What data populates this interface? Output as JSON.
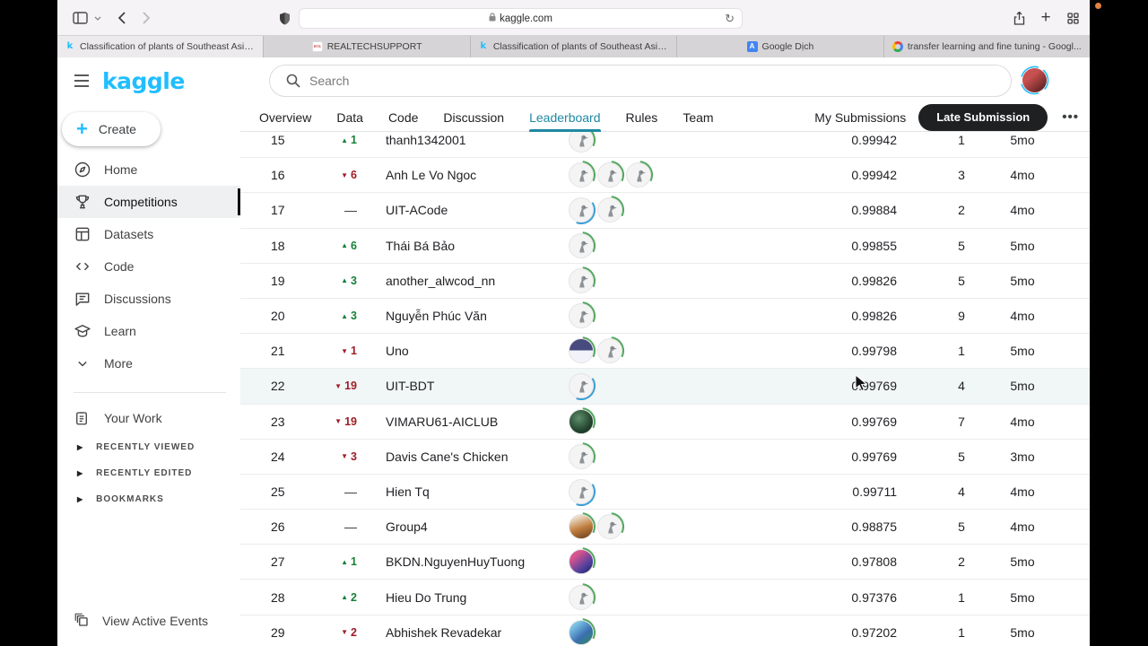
{
  "browser": {
    "url": "kaggle.com",
    "toolbar_icons": [
      "sidebar-toggle-icon",
      "chevron-down-icon",
      "back-icon",
      "forward-icon",
      "privacy-shield-icon",
      "lock-icon",
      "reload-icon",
      "share-icon",
      "new-tab-icon",
      "tab-overview-icon"
    ],
    "tabs": [
      {
        "label": "Classification of plants of Southeast Asia...",
        "icon": "kaggle-favicon",
        "active": true
      },
      {
        "label": "REALTECHSUPPORT",
        "icon": "rts-favicon",
        "active": false
      },
      {
        "label": "Classification of plants of Southeast Asia...",
        "icon": "kaggle-favicon",
        "active": false
      },
      {
        "label": "Google Dịch",
        "icon": "google-translate-favicon",
        "active": false
      },
      {
        "label": "transfer learning and fine tuning - Googl...",
        "icon": "google-favicon",
        "active": false
      }
    ]
  },
  "sidebar": {
    "logo": "kaggle",
    "create_label": "Create",
    "items": [
      {
        "label": "Home",
        "icon": "compass-icon",
        "active": false
      },
      {
        "label": "Competitions",
        "icon": "trophy-icon",
        "active": true
      },
      {
        "label": "Datasets",
        "icon": "datasets-icon",
        "active": false
      },
      {
        "label": "Code",
        "icon": "code-icon",
        "active": false
      },
      {
        "label": "Discussions",
        "icon": "discussions-icon",
        "active": false
      },
      {
        "label": "Learn",
        "icon": "learn-icon",
        "active": false
      },
      {
        "label": "More",
        "icon": "chevron-down-icon",
        "active": false
      }
    ],
    "your_work": "Your Work",
    "collapsed_sections": [
      "RECENTLY VIEWED",
      "RECENTLY EDITED",
      "BOOKMARKS"
    ],
    "footer": "View Active Events"
  },
  "header": {
    "search_placeholder": "Search"
  },
  "nav": {
    "tabs": [
      "Overview",
      "Data",
      "Code",
      "Discussion",
      "Leaderboard",
      "Rules",
      "Team"
    ],
    "active_tab": "Leaderboard",
    "my_submissions": "My Submissions",
    "late_submission": "Late Submission",
    "more": "•••"
  },
  "colors": {
    "kaggle_accent": "#20beff",
    "nav_active_teal": "#1e89a3",
    "delta_up_green": "#188038",
    "delta_down_red": "#a01c26",
    "row_highlight": "#f1f6f6",
    "arc_green": "#55a860",
    "arc_blue": "#3a9fd8"
  },
  "leaderboard": {
    "rows": [
      {
        "rank": "15",
        "dir": "up",
        "delta": "1",
        "team": "thanh1342001",
        "avatars": [
          "goose:green"
        ],
        "score": "0.99942",
        "entries": "1",
        "last": "5mo",
        "highlight": false
      },
      {
        "rank": "16",
        "dir": "down",
        "delta": "6",
        "team": "Anh Le Vo Ngoc",
        "avatars": [
          "goose:green",
          "goose:green",
          "goose:green"
        ],
        "score": "0.99942",
        "entries": "3",
        "last": "4mo",
        "highlight": false
      },
      {
        "rank": "17",
        "dir": "flat",
        "delta": "—",
        "team": "UIT-ACode",
        "avatars": [
          "goose:blue",
          "goose:green"
        ],
        "score": "0.99884",
        "entries": "2",
        "last": "4mo",
        "highlight": false
      },
      {
        "rank": "18",
        "dir": "up",
        "delta": "6",
        "team": "Thái Bá Bảo",
        "avatars": [
          "goose:green"
        ],
        "score": "0.99855",
        "entries": "5",
        "last": "5mo",
        "highlight": false
      },
      {
        "rank": "19",
        "dir": "up",
        "delta": "3",
        "team": "another_alwcod_nn",
        "avatars": [
          "goose:green"
        ],
        "score": "0.99826",
        "entries": "5",
        "last": "5mo",
        "highlight": false
      },
      {
        "rank": "20",
        "dir": "up",
        "delta": "3",
        "team": "Nguyễn Phúc Văn",
        "avatars": [
          "goose:green"
        ],
        "score": "0.99826",
        "entries": "9",
        "last": "4mo",
        "highlight": false
      },
      {
        "rank": "21",
        "dir": "down",
        "delta": "1",
        "team": "Uno",
        "avatars": [
          "penguin:green",
          "goose:green"
        ],
        "score": "0.99798",
        "entries": "1",
        "last": "5mo",
        "highlight": false
      },
      {
        "rank": "22",
        "dir": "down",
        "delta": "19",
        "team": "UIT-BDT",
        "avatars": [
          "goose:blue"
        ],
        "score": "0.99769",
        "entries": "4",
        "last": "5mo",
        "highlight": true
      },
      {
        "rank": "23",
        "dir": "down",
        "delta": "19",
        "team": "VIMARU61-AICLUB",
        "avatars": [
          "photo-green:green"
        ],
        "score": "0.99769",
        "entries": "7",
        "last": "4mo",
        "highlight": false
      },
      {
        "rank": "24",
        "dir": "down",
        "delta": "3",
        "team": "Davis Cane's Chicken",
        "avatars": [
          "goose:green"
        ],
        "score": "0.99769",
        "entries": "5",
        "last": "3mo",
        "highlight": false
      },
      {
        "rank": "25",
        "dir": "flat",
        "delta": "—",
        "team": "Hien Tq",
        "avatars": [
          "goose:blue"
        ],
        "score": "0.99711",
        "entries": "4",
        "last": "4mo",
        "highlight": false
      },
      {
        "rank": "26",
        "dir": "flat",
        "delta": "—",
        "team": "Group4",
        "avatars": [
          "photo-orange:green",
          "goose:green"
        ],
        "score": "0.98875",
        "entries": "5",
        "last": "4mo",
        "highlight": false
      },
      {
        "rank": "27",
        "dir": "up",
        "delta": "1",
        "team": "BKDN.NguyenHuyTuong",
        "avatars": [
          "photo-pink:green"
        ],
        "score": "0.97808",
        "entries": "2",
        "last": "5mo",
        "highlight": false
      },
      {
        "rank": "28",
        "dir": "up",
        "delta": "2",
        "team": "Hieu Do Trung",
        "avatars": [
          "goose:green"
        ],
        "score": "0.97376",
        "entries": "1",
        "last": "5mo",
        "highlight": false
      },
      {
        "rank": "29",
        "dir": "down",
        "delta": "2",
        "team": "Abhishek Revadekar",
        "avatars": [
          "photo-blue:green"
        ],
        "score": "0.97202",
        "entries": "1",
        "last": "5mo",
        "highlight": false
      }
    ]
  }
}
